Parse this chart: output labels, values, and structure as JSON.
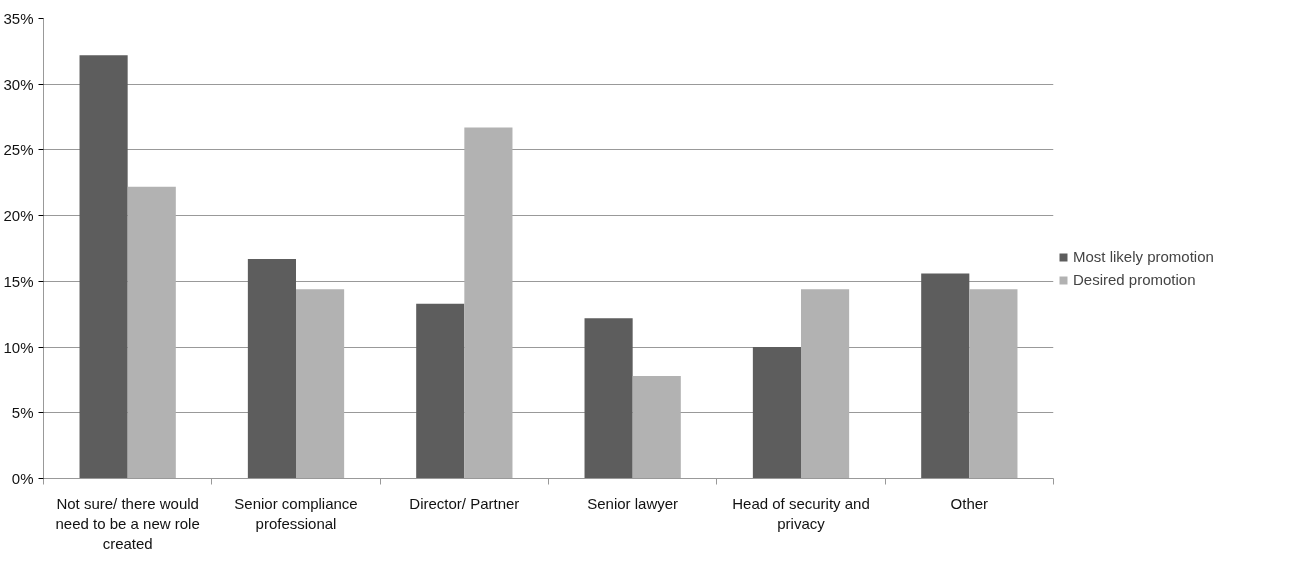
{
  "chart_data": {
    "type": "bar",
    "categories": [
      "Not sure/ there would need to be a new role created",
      "Senior compliance professional",
      "Director/ Partner",
      "Senior lawyer",
      "Head of security and privacy",
      "Other"
    ],
    "series": [
      {
        "name": "Most likely promotion",
        "color": "#5d5d5d",
        "values": [
          32.2,
          16.7,
          13.3,
          12.2,
          10.0,
          15.6
        ]
      },
      {
        "name": "Desired promotion",
        "color": "#b2b2b2",
        "values": [
          22.2,
          14.4,
          26.7,
          7.8,
          14.4,
          14.4
        ]
      }
    ],
    "ylim": [
      0,
      35
    ],
    "yticks": [
      {
        "value": 0,
        "label": "0%"
      },
      {
        "value": 5,
        "label": "5%"
      },
      {
        "value": 10,
        "label": "10%"
      },
      {
        "value": 15,
        "label": "15%"
      },
      {
        "value": 20,
        "label": "20%"
      },
      {
        "value": 25,
        "label": "25%"
      },
      {
        "value": 30,
        "label": "30%"
      },
      {
        "value": 35,
        "label": "35%"
      }
    ],
    "grid": "y",
    "legend": "right"
  }
}
